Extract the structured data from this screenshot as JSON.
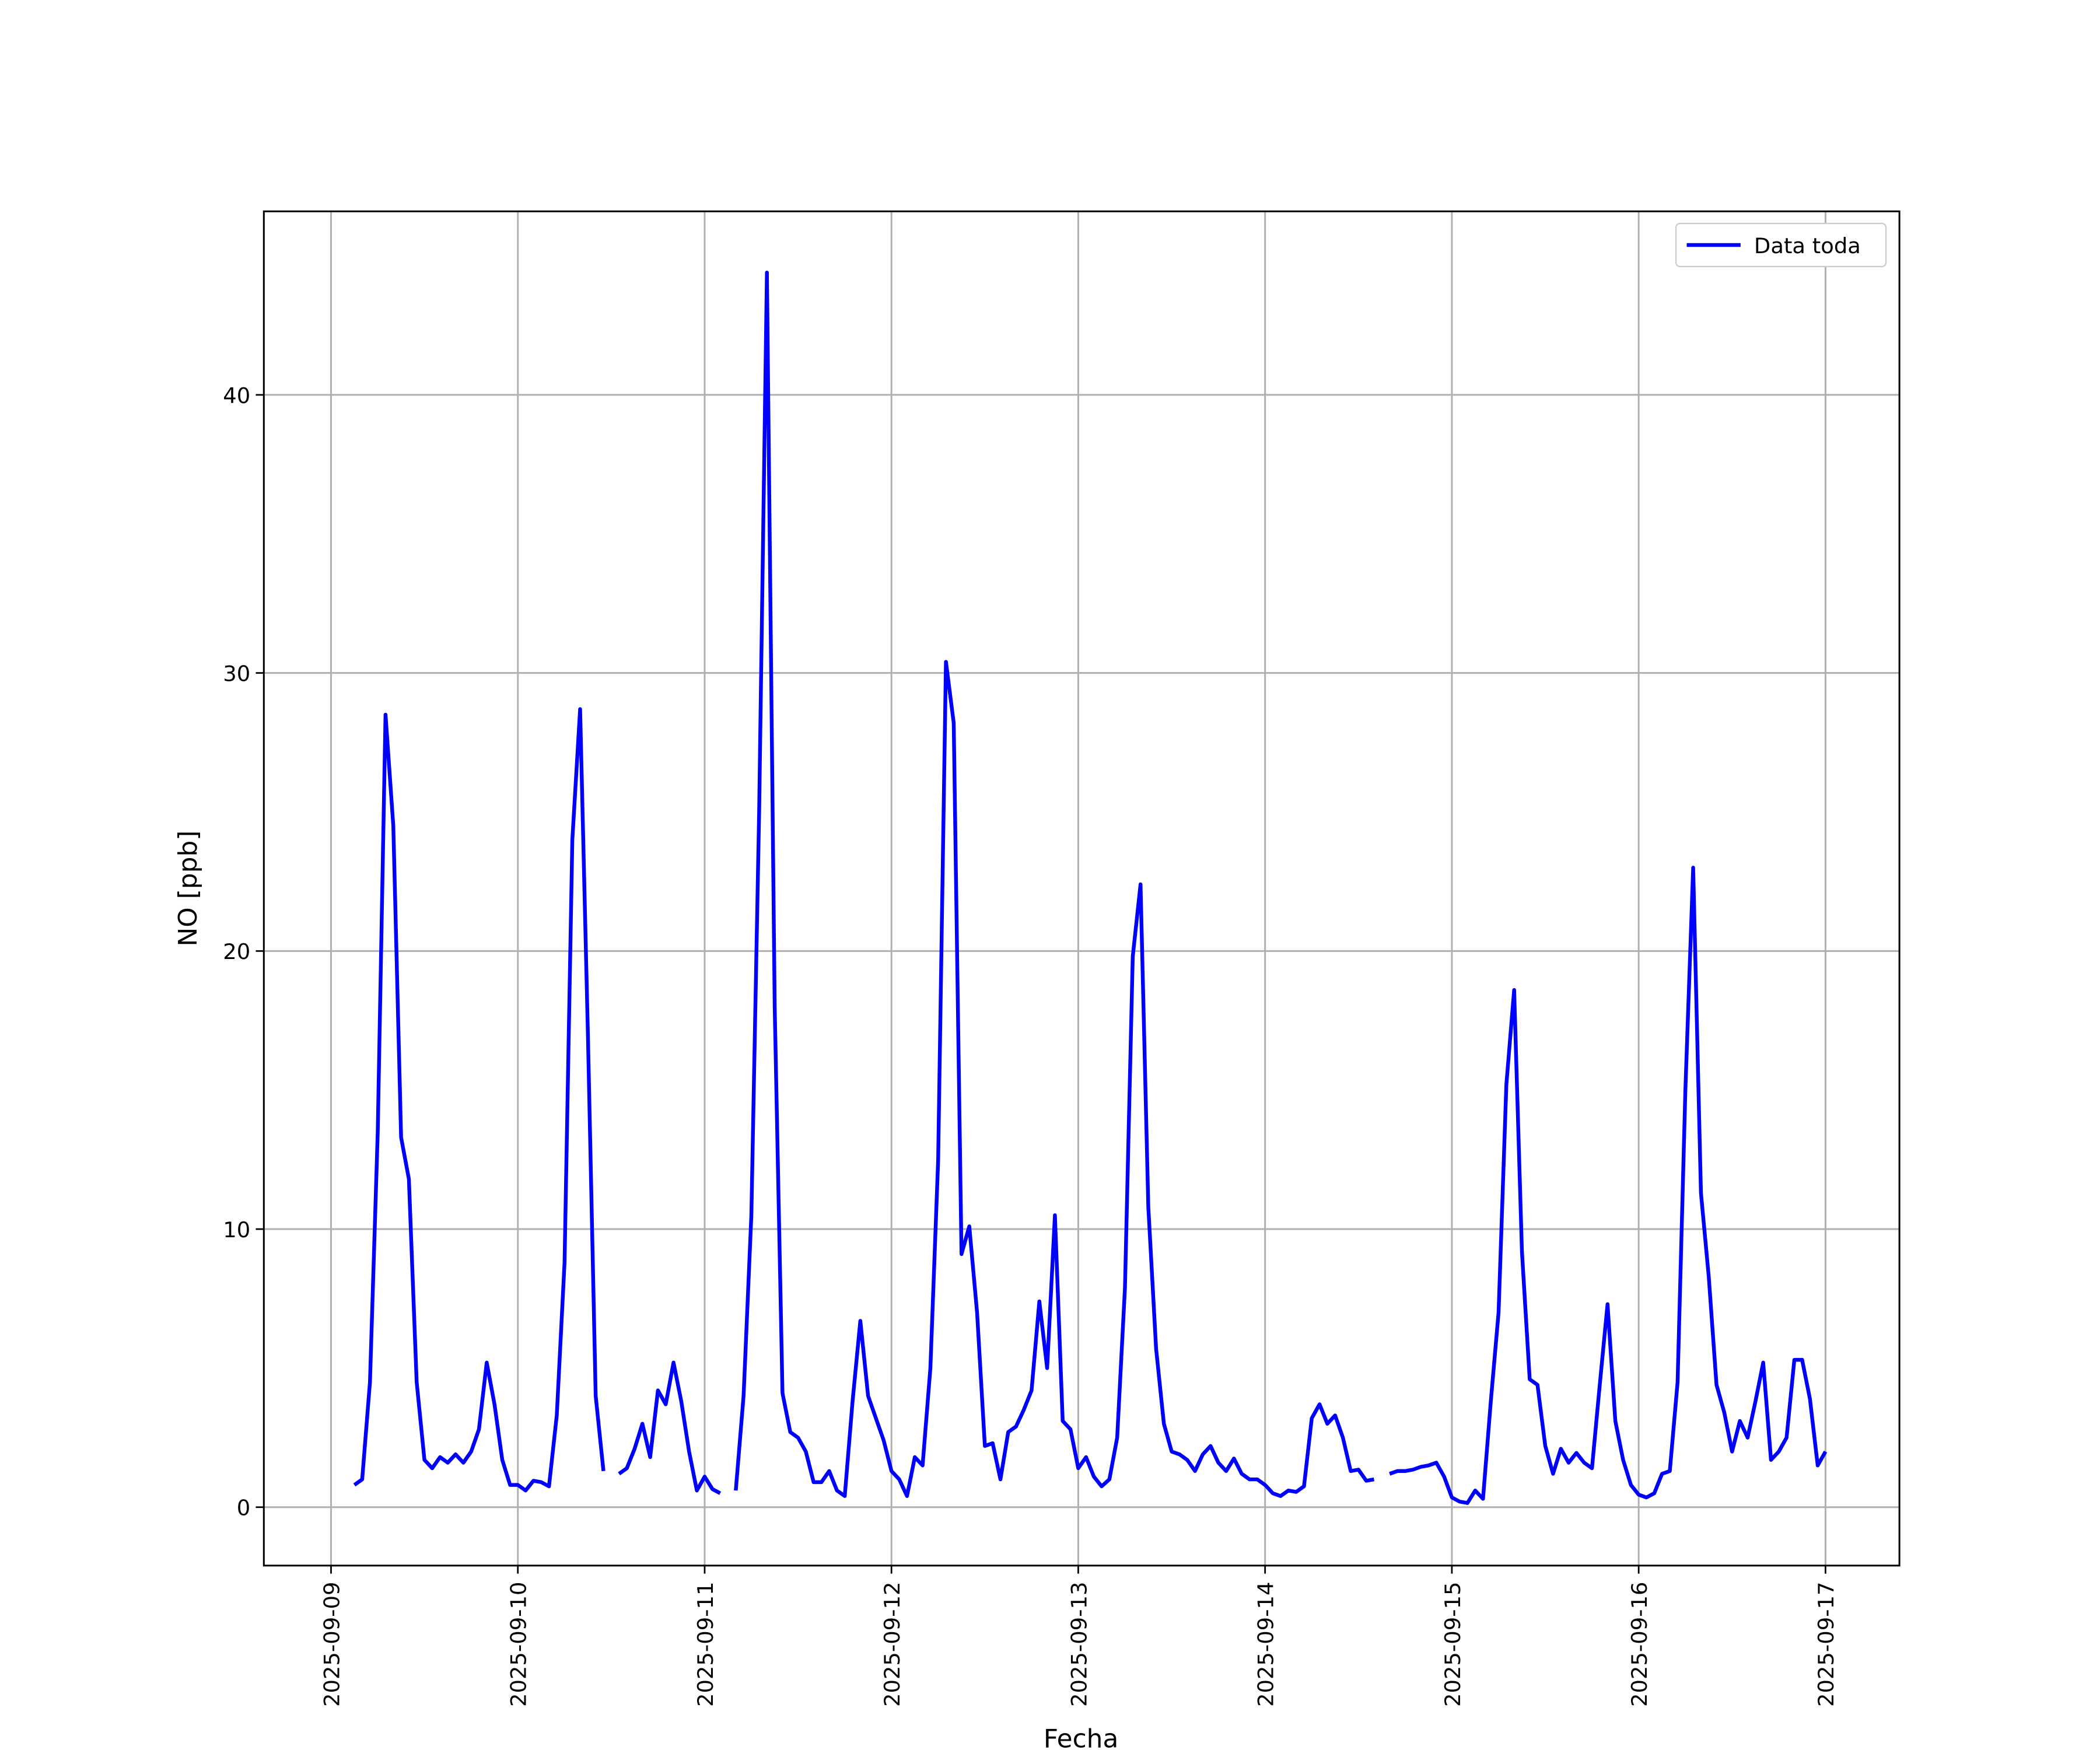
{
  "chart_data": {
    "type": "line",
    "x_label": "Fecha",
    "y_label": "NO [ppb]",
    "x": [
      "2025-09-09 03:00",
      "2025-09-09 04:00",
      "2025-09-09 05:00",
      "2025-09-09 06:00",
      "2025-09-09 07:00",
      "2025-09-09 08:00",
      "2025-09-09 09:00",
      "2025-09-09 10:00",
      "2025-09-09 11:00",
      "2025-09-09 12:00",
      "2025-09-09 13:00",
      "2025-09-09 14:00",
      "2025-09-09 15:00",
      "2025-09-09 16:00",
      "2025-09-09 17:00",
      "2025-09-09 18:00",
      "2025-09-09 19:00",
      "2025-09-09 20:00",
      "2025-09-09 21:00",
      "2025-09-09 22:00",
      "2025-09-09 23:00",
      "2025-09-10 00:00",
      "2025-09-10 01:00",
      "2025-09-10 02:00",
      "2025-09-10 03:00",
      "2025-09-10 04:00",
      "2025-09-10 05:00",
      "2025-09-10 06:00",
      "2025-09-10 07:00",
      "2025-09-10 08:00",
      "2025-09-10 09:00",
      "2025-09-10 10:00",
      "2025-09-10 11:00",
      "2025-09-10 12:00",
      "2025-09-10 13:00",
      "2025-09-10 14:00",
      "2025-09-10 15:00",
      "2025-09-10 16:00",
      "2025-09-10 17:00",
      "2025-09-10 18:00",
      "2025-09-10 19:00",
      "2025-09-10 20:00",
      "2025-09-10 21:00",
      "2025-09-10 22:00",
      "2025-09-10 23:00",
      "2025-09-11 00:00",
      "2025-09-11 01:00",
      "2025-09-11 02:00",
      "2025-09-11 03:00",
      "2025-09-11 04:00",
      "2025-09-11 05:00",
      "2025-09-11 06:00",
      "2025-09-11 07:00",
      "2025-09-11 08:00",
      "2025-09-11 09:00",
      "2025-09-11 10:00",
      "2025-09-11 11:00",
      "2025-09-11 12:00",
      "2025-09-11 13:00",
      "2025-09-11 14:00",
      "2025-09-11 15:00",
      "2025-09-11 16:00",
      "2025-09-11 17:00",
      "2025-09-11 18:00",
      "2025-09-11 19:00",
      "2025-09-11 20:00",
      "2025-09-11 21:00",
      "2025-09-11 22:00",
      "2025-09-11 23:00",
      "2025-09-12 00:00",
      "2025-09-12 01:00",
      "2025-09-12 02:00",
      "2025-09-12 03:00",
      "2025-09-12 04:00",
      "2025-09-12 05:00",
      "2025-09-12 06:00",
      "2025-09-12 07:00",
      "2025-09-12 08:00",
      "2025-09-12 09:00",
      "2025-09-12 10:00",
      "2025-09-12 11:00",
      "2025-09-12 12:00",
      "2025-09-12 13:00",
      "2025-09-12 14:00",
      "2025-09-12 15:00",
      "2025-09-12 16:00",
      "2025-09-12 17:00",
      "2025-09-12 18:00",
      "2025-09-12 19:00",
      "2025-09-12 20:00",
      "2025-09-12 21:00",
      "2025-09-12 22:00",
      "2025-09-12 23:00",
      "2025-09-13 00:00",
      "2025-09-13 01:00",
      "2025-09-13 02:00",
      "2025-09-13 03:00",
      "2025-09-13 04:00",
      "2025-09-13 05:00",
      "2025-09-13 06:00",
      "2025-09-13 07:00",
      "2025-09-13 08:00",
      "2025-09-13 09:00",
      "2025-09-13 10:00",
      "2025-09-13 11:00",
      "2025-09-13 12:00",
      "2025-09-13 13:00",
      "2025-09-13 14:00",
      "2025-09-13 15:00",
      "2025-09-13 16:00",
      "2025-09-13 17:00",
      "2025-09-13 18:00",
      "2025-09-13 19:00",
      "2025-09-13 20:00",
      "2025-09-13 21:00",
      "2025-09-13 22:00",
      "2025-09-13 23:00",
      "2025-09-14 00:00",
      "2025-09-14 01:00",
      "2025-09-14 02:00",
      "2025-09-14 03:00",
      "2025-09-14 04:00",
      "2025-09-14 05:00",
      "2025-09-14 06:00",
      "2025-09-14 07:00",
      "2025-09-14 08:00",
      "2025-09-14 09:00",
      "2025-09-14 10:00",
      "2025-09-14 11:00",
      "2025-09-14 12:00",
      "2025-09-14 13:00",
      "2025-09-14 14:00",
      "2025-09-14 15:00",
      "2025-09-14 16:00",
      "2025-09-14 17:00",
      "2025-09-14 18:00",
      "2025-09-14 19:00",
      "2025-09-14 20:00",
      "2025-09-14 21:00",
      "2025-09-14 22:00",
      "2025-09-14 23:00",
      "2025-09-15 00:00",
      "2025-09-15 01:00",
      "2025-09-15 02:00",
      "2025-09-15 03:00",
      "2025-09-15 04:00",
      "2025-09-15 05:00",
      "2025-09-15 06:00",
      "2025-09-15 07:00",
      "2025-09-15 08:00",
      "2025-09-15 09:00",
      "2025-09-15 10:00",
      "2025-09-15 11:00",
      "2025-09-15 12:00",
      "2025-09-15 13:00",
      "2025-09-15 14:00",
      "2025-09-15 15:00",
      "2025-09-15 16:00",
      "2025-09-15 17:00",
      "2025-09-15 18:00",
      "2025-09-15 19:00",
      "2025-09-15 20:00",
      "2025-09-15 21:00",
      "2025-09-15 22:00",
      "2025-09-15 23:00",
      "2025-09-16 00:00",
      "2025-09-16 01:00",
      "2025-09-16 02:00",
      "2025-09-16 03:00",
      "2025-09-16 04:00",
      "2025-09-16 05:00",
      "2025-09-16 06:00",
      "2025-09-16 07:00",
      "2025-09-16 08:00",
      "2025-09-16 09:00",
      "2025-09-16 10:00",
      "2025-09-16 11:00",
      "2025-09-16 12:00",
      "2025-09-16 13:00",
      "2025-09-16 14:00",
      "2025-09-16 15:00",
      "2025-09-16 16:00",
      "2025-09-16 17:00",
      "2025-09-16 18:00",
      "2025-09-16 19:00",
      "2025-09-16 20:00",
      "2025-09-16 21:00",
      "2025-09-16 22:00",
      "2025-09-16 23:00",
      "2025-09-17 00:00"
    ],
    "series": [
      {
        "name": "Data toda",
        "color": "#0000ff",
        "values": [
          0.8,
          1.0,
          4.5,
          13.5,
          28.5,
          24.5,
          13.3,
          11.8,
          4.5,
          1.7,
          1.4,
          1.8,
          1.6,
          1.9,
          1.6,
          2.0,
          2.8,
          5.2,
          3.7,
          1.7,
          0.8,
          0.8,
          0.6,
          0.95,
          0.9,
          0.75,
          3.3,
          8.8,
          24,
          28.7,
          17,
          4.0,
          1.3,
          null,
          1.2,
          1.4,
          2.1,
          3.0,
          1.8,
          4.2,
          3.7,
          5.2,
          3.8,
          2.0,
          0.6,
          1.1,
          0.65,
          0.5,
          null,
          0.6,
          4.0,
          10.5,
          25,
          44.4,
          18,
          4.1,
          2.7,
          2.5,
          2.0,
          0.9,
          0.9,
          1.3,
          0.6,
          0.4,
          3.8,
          6.7,
          4.0,
          3.2,
          2.4,
          1.3,
          1.0,
          0.4,
          1.8,
          1.5,
          5.0,
          12.5,
          30.4,
          28.2,
          9.1,
          10.1,
          7.0,
          2.2,
          2.3,
          1.0,
          2.7,
          2.9,
          3.5,
          4.2,
          7.4,
          5.0,
          10.5,
          3.1,
          2.8,
          1.4,
          1.8,
          1.1,
          0.75,
          1.0,
          2.5,
          7.9,
          19.8,
          22.4,
          10.8,
          5.7,
          3.0,
          2.0,
          1.9,
          1.7,
          1.3,
          1.9,
          2.2,
          1.6,
          1.3,
          1.75,
          1.2,
          1.0,
          1.0,
          0.8,
          0.5,
          0.4,
          0.6,
          0.55,
          0.75,
          3.2,
          3.7,
          3.0,
          3.3,
          2.5,
          1.3,
          1.35,
          0.95,
          1.0,
          null,
          1.2,
          1.3,
          1.3,
          1.35,
          1.45,
          1.5,
          1.6,
          1.1,
          0.35,
          0.2,
          0.15,
          0.6,
          0.3,
          3.8,
          7.0,
          15.2,
          18.6,
          9.2,
          4.6,
          4.4,
          2.2,
          1.2,
          2.1,
          1.6,
          1.95,
          1.6,
          1.4,
          4.4,
          7.3,
          3.1,
          1.7,
          0.8,
          0.45,
          0.35,
          0.5,
          1.2,
          1.3,
          4.5,
          15,
          23,
          11.3,
          8.3,
          4.4,
          3.4,
          2.0,
          3.1,
          2.5,
          3.8,
          5.2,
          1.7,
          2.0,
          2.5,
          5.3,
          5.3,
          3.9,
          1.5,
          2.0
        ]
      }
    ],
    "xlim": [
      "2025-09-08 15:22",
      "2025-09-17 09:30"
    ],
    "xticks": [
      "2025-09-09",
      "2025-09-10",
      "2025-09-11",
      "2025-09-12",
      "2025-09-13",
      "2025-09-14",
      "2025-09-15",
      "2025-09-16",
      "2025-09-17"
    ],
    "ylim": [
      -2.1,
      46.6
    ],
    "yticks": [
      0,
      10,
      20,
      30,
      40
    ],
    "grid": true,
    "legend": "upper right"
  }
}
